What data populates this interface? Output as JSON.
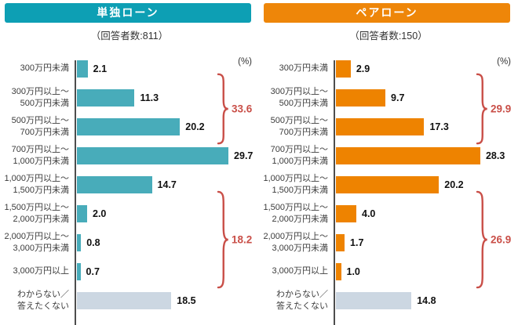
{
  "colors": {
    "teal_header": "#0d9fb4",
    "teal_bar": "#48acba",
    "orange_header": "#ee8609",
    "orange_bar": "#ee8300",
    "gray_bar": "#ccd7e2",
    "accent_red": "#c94f48",
    "axis_gray": "#4d4d4d"
  },
  "chart_data": [
    {
      "type": "bar",
      "orientation": "horizontal",
      "title": "単独ローン",
      "subtitle": "（回答者数:811）",
      "unit_label": "(%)",
      "xlim": [
        0,
        30
      ],
      "grid": false,
      "categories": [
        "300万円未満",
        "300万円以上～\n500万円未満",
        "500万円以上～\n700万円未満",
        "700万円以上～\n1,000万円未満",
        "1,000万円以上～\n1,500万円未満",
        "1,500万円以上～\n2,000万円未満",
        "2,000万円以上～\n3,000万円未満",
        "3,000万円以上",
        "わからない／\n答えたくない"
      ],
      "values": [
        2.1,
        11.3,
        20.2,
        29.7,
        14.7,
        2.0,
        0.8,
        0.7,
        18.5
      ],
      "value_labels": [
        "2.1",
        "11.3",
        "20.2",
        "29.7",
        "14.7",
        "2.0",
        "0.8",
        "0.7",
        "18.5"
      ],
      "group_totals": [
        {
          "label": "33.6",
          "rows": [
            1,
            3
          ]
        },
        {
          "label": "18.2",
          "rows": [
            5,
            8
          ]
        }
      ]
    },
    {
      "type": "bar",
      "orientation": "horizontal",
      "title": "ペアローン",
      "subtitle": "（回答者数:150）",
      "unit_label": "(%)",
      "xlim": [
        0,
        30
      ],
      "grid": false,
      "categories": [
        "300万円未満",
        "300万円以上～\n500万円未満",
        "500万円以上～\n700万円未満",
        "700万円以上～\n1,000万円未満",
        "1,000万円以上～\n1,500万円未満",
        "1,500万円以上～\n2,000万円未満",
        "2,000万円以上～\n3,000万円未満",
        "3,000万円以上",
        "わからない／\n答えたくない"
      ],
      "values": [
        2.9,
        9.7,
        17.3,
        28.3,
        20.2,
        4.0,
        1.7,
        1.0,
        14.8
      ],
      "value_labels": [
        "2.9",
        "9.7",
        "17.3",
        "28.3",
        "20.2",
        "4.0",
        "1.7",
        "1.0",
        "14.8"
      ],
      "group_totals": [
        {
          "label": "29.9",
          "rows": [
            1,
            3
          ]
        },
        {
          "label": "26.9",
          "rows": [
            5,
            8
          ]
        }
      ]
    }
  ]
}
